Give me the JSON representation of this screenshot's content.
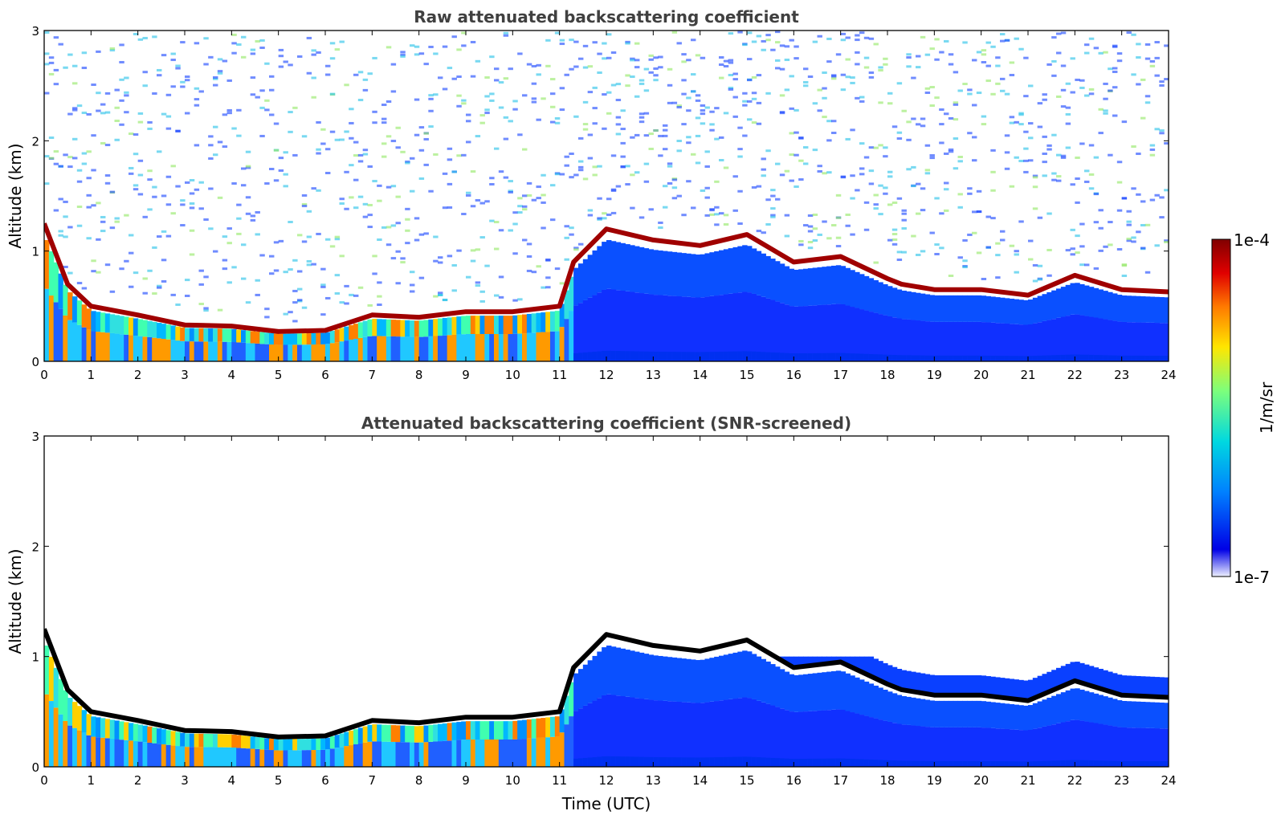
{
  "figure": {
    "colorbar": {
      "label": "1/m/sr",
      "max_label": "1e-4",
      "min_label": "1e-7",
      "colormap": [
        "#eef0ff",
        "#0000e6",
        "#0080ff",
        "#00d8e0",
        "#7cff7c",
        "#ffe600",
        "#ff7a00",
        "#e00000",
        "#800000"
      ]
    }
  },
  "chart_data": [
    {
      "type": "heatmap",
      "title": "Raw attenuated backscattering coefficient",
      "xlabel": "",
      "ylabel": "Altitude (km)",
      "xlim": [
        0,
        24
      ],
      "ylim": [
        0,
        3
      ],
      "xticks": [
        "0",
        "1",
        "2",
        "3",
        "4",
        "5",
        "6",
        "7",
        "8",
        "9",
        "10",
        "11",
        "12",
        "13",
        "14",
        "15",
        "16",
        "17",
        "18",
        "19",
        "20",
        "21",
        "22",
        "23",
        "24"
      ],
      "yticks": [
        "0",
        "1",
        "2",
        "3"
      ],
      "boundary_layer_top_km": {
        "x": [
          0,
          0.5,
          1,
          2,
          3,
          4,
          5,
          6,
          7,
          8,
          9,
          10,
          11,
          11.3,
          12,
          13,
          14,
          15,
          16,
          17,
          18,
          18.3,
          19,
          20,
          21,
          22,
          23,
          24
        ],
        "y": [
          1.25,
          0.7,
          0.5,
          0.42,
          0.33,
          0.32,
          0.27,
          0.28,
          0.42,
          0.4,
          0.45,
          0.45,
          0.5,
          0.9,
          1.2,
          1.1,
          1.05,
          1.15,
          0.9,
          0.95,
          0.75,
          0.7,
          0.65,
          0.65,
          0.6,
          0.78,
          0.65,
          0.63
        ]
      },
      "noise_level": "high"
    },
    {
      "type": "heatmap",
      "title": "Attenuated backscattering coefficient (SNR-screened)",
      "xlabel": "Time (UTC)",
      "ylabel": "Altitude (km)",
      "xlim": [
        0,
        24
      ],
      "ylim": [
        0,
        3
      ],
      "xticks": [
        "0",
        "1",
        "2",
        "3",
        "4",
        "5",
        "6",
        "7",
        "8",
        "9",
        "10",
        "11",
        "12",
        "13",
        "14",
        "15",
        "16",
        "17",
        "18",
        "19",
        "20",
        "21",
        "22",
        "23",
        "24"
      ],
      "yticks": [
        "0",
        "1",
        "2",
        "3"
      ],
      "boundary_layer_top_km": {
        "x": [
          0,
          0.5,
          1,
          2,
          3,
          4,
          5,
          6,
          7,
          8,
          9,
          10,
          11,
          11.3,
          12,
          13,
          14,
          15,
          16,
          17,
          18,
          18.3,
          19,
          20,
          21,
          22,
          23,
          24
        ],
        "y": [
          1.25,
          0.7,
          0.5,
          0.42,
          0.33,
          0.32,
          0.27,
          0.28,
          0.42,
          0.4,
          0.45,
          0.45,
          0.5,
          0.9,
          1.2,
          1.1,
          1.05,
          1.15,
          0.9,
          0.95,
          0.75,
          0.7,
          0.65,
          0.65,
          0.6,
          0.78,
          0.65,
          0.63
        ]
      },
      "noise_level": "screened"
    }
  ]
}
